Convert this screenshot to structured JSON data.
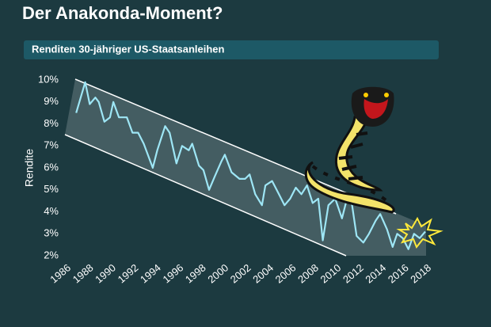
{
  "chart_data": {
    "type": "line",
    "title": "Der Anakonda-Moment?",
    "subtitle": "Renditen 30-jähriger US-Staatsanleihen",
    "y_label": "Rendite",
    "xlim": [
      1986,
      2018
    ],
    "xticks": [
      1986,
      1988,
      1990,
      1992,
      1994,
      1996,
      1998,
      2000,
      2002,
      2004,
      2006,
      2008,
      2010,
      2012,
      2014,
      2016,
      2018
    ],
    "ylim": [
      2,
      10
    ],
    "yticks": [
      {
        "value": 2,
        "label": "2%"
      },
      {
        "value": 3,
        "label": "3%"
      },
      {
        "value": 4,
        "label": "4%"
      },
      {
        "value": 5,
        "label": "5%"
      },
      {
        "value": 6,
        "label": "6%"
      },
      {
        "value": 7,
        "label": "7%"
      },
      {
        "value": 8,
        "label": "8%"
      },
      {
        "value": 9,
        "label": "9%"
      },
      {
        "value": 10,
        "label": "10%"
      }
    ],
    "color": "#9ee6f5",
    "x": [
      1987.0,
      1987.8,
      1988.2,
      1988.7,
      1989.0,
      1989.5,
      1990.0,
      1990.3,
      1990.8,
      1991.5,
      1992.0,
      1992.5,
      1993.0,
      1993.8,
      1994.2,
      1994.9,
      1995.3,
      1995.9,
      1996.4,
      1997.0,
      1997.3,
      1997.9,
      1998.3,
      1998.8,
      1999.3,
      1999.9,
      2000.2,
      2000.8,
      2001.5,
      2002.0,
      2002.4,
      2002.9,
      2003.5,
      2003.8,
      2004.4,
      2005.0,
      2005.5,
      2006.0,
      2006.5,
      2007.0,
      2007.5,
      2008.0,
      2008.5,
      2008.9,
      2009.4,
      2010.0,
      2010.6,
      2011.1,
      2011.5,
      2011.9,
      2012.5,
      2013.0,
      2013.6,
      2014.0,
      2014.6,
      2015.1,
      2015.5,
      2016.0,
      2016.5,
      2017.0,
      2017.5,
      2018.0
    ],
    "values": [
      8.5,
      9.9,
      8.9,
      9.2,
      9.0,
      8.1,
      8.3,
      9.0,
      8.3,
      8.3,
      7.6,
      7.6,
      7.1,
      6.0,
      6.8,
      7.9,
      7.6,
      6.2,
      7.0,
      6.8,
      7.1,
      6.1,
      5.9,
      5.0,
      5.6,
      6.3,
      6.6,
      5.8,
      5.5,
      5.5,
      5.7,
      4.8,
      4.3,
      5.2,
      5.4,
      4.8,
      4.3,
      4.6,
      5.1,
      4.8,
      5.2,
      4.4,
      4.6,
      2.7,
      4.3,
      4.6,
      3.7,
      4.7,
      4.3,
      2.9,
      2.6,
      3.0,
      3.6,
      3.9,
      3.2,
      2.4,
      3.0,
      2.8,
      2.3,
      3.0,
      2.8,
      3.1
    ]
  }
}
